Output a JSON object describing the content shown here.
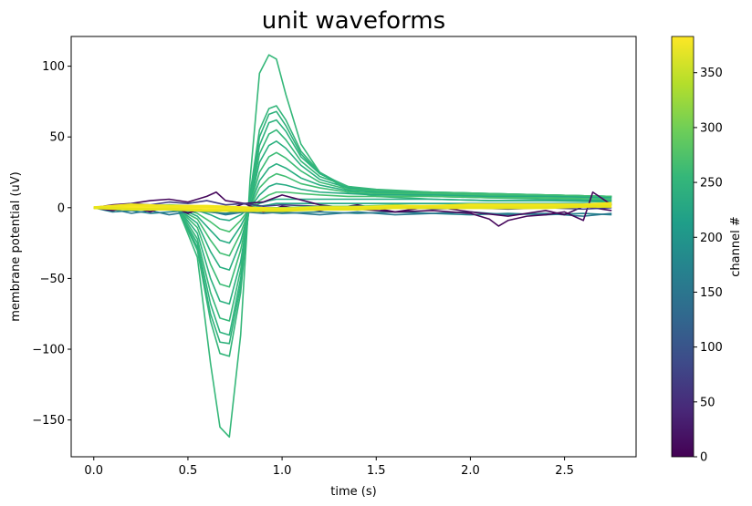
{
  "chart_data": {
    "type": "line",
    "title": "unit waveforms",
    "xlabel": "time (s)",
    "ylabel": "membrane potential (uV)",
    "xlim": [
      -0.12,
      2.88
    ],
    "ylim": [
      -176,
      121
    ],
    "xticks": [
      0.0,
      0.5,
      1.0,
      1.5,
      2.0,
      2.5
    ],
    "xtick_labels": [
      "0.0",
      "0.5",
      "1.0",
      "1.5",
      "2.0",
      "2.5"
    ],
    "yticks": [
      100,
      50,
      0,
      -50,
      -100,
      -150
    ],
    "ytick_labels": [
      "100",
      "50",
      "0",
      "−50",
      "−100",
      "−150"
    ],
    "grid": false,
    "colorbar": {
      "label": "channel #",
      "range": [
        0,
        383
      ],
      "ticks": [
        0,
        50,
        100,
        150,
        200,
        250,
        300,
        350
      ],
      "tick_labels": [
        "0",
        "50",
        "100",
        "150",
        "200",
        "250",
        "300",
        "350"
      ],
      "colormap": "viridis",
      "colormap_stops": [
        "#440154",
        "#482878",
        "#3e4a89",
        "#31688e",
        "#26828e",
        "#1f9e89",
        "#35b779",
        "#6ece58",
        "#b5de2b",
        "#fde725"
      ]
    },
    "series": [
      {
        "channel": 263,
        "color": "#35b779",
        "x": [
          0.0,
          0.3,
          0.45,
          0.55,
          0.62,
          0.67,
          0.72,
          0.78,
          0.83,
          0.88,
          0.93,
          0.97,
          1.02,
          1.1,
          1.2,
          1.35,
          1.5,
          1.8,
          2.1,
          2.4,
          2.75
        ],
        "y": [
          0,
          0,
          -2,
          -35,
          -110,
          -155,
          -162,
          -90,
          20,
          95,
          108,
          105,
          80,
          45,
          25,
          12,
          8,
          6,
          5,
          5,
          4
        ]
      },
      {
        "channel": 258,
        "color": "#33b57a",
        "x": [
          0.0,
          0.3,
          0.45,
          0.55,
          0.62,
          0.67,
          0.72,
          0.78,
          0.83,
          0.88,
          0.93,
          0.97,
          1.02,
          1.1,
          1.2,
          1.35,
          1.5,
          1.8,
          2.1,
          2.4,
          2.75
        ],
        "y": [
          0,
          0,
          -2,
          -30,
          -80,
          -103,
          -105,
          -60,
          10,
          55,
          70,
          72,
          62,
          40,
          25,
          14,
          10,
          8,
          7,
          6,
          5
        ]
      },
      {
        "channel": 255,
        "color": "#30b27c",
        "x": [
          0.0,
          0.3,
          0.45,
          0.55,
          0.62,
          0.67,
          0.72,
          0.78,
          0.83,
          0.88,
          0.93,
          0.97,
          1.02,
          1.1,
          1.2,
          1.35,
          1.5,
          1.8,
          2.1,
          2.4,
          2.75
        ],
        "y": [
          0,
          0,
          -2,
          -28,
          -75,
          -95,
          -96,
          -55,
          8,
          50,
          66,
          68,
          58,
          38,
          24,
          14,
          11,
          9,
          8,
          7,
          6
        ]
      },
      {
        "channel": 252,
        "color": "#2db27d",
        "x": [
          0.0,
          0.3,
          0.45,
          0.55,
          0.62,
          0.67,
          0.72,
          0.78,
          0.83,
          0.88,
          0.93,
          0.97,
          1.02,
          1.1,
          1.2,
          1.35,
          1.5,
          1.8,
          2.1,
          2.4,
          2.75
        ],
        "y": [
          0,
          0,
          -2,
          -25,
          -68,
          -88,
          -90,
          -50,
          5,
          44,
          60,
          62,
          54,
          36,
          24,
          15,
          12,
          10,
          9,
          8,
          7
        ]
      },
      {
        "channel": 260,
        "color": "#35b779",
        "x": [
          0.0,
          0.3,
          0.45,
          0.55,
          0.62,
          0.67,
          0.72,
          0.78,
          0.83,
          0.88,
          0.93,
          0.97,
          1.02,
          1.1,
          1.2,
          1.35,
          1.5,
          1.8,
          2.1,
          2.4,
          2.75
        ],
        "y": [
          0,
          0,
          -1,
          -22,
          -60,
          -78,
          -80,
          -44,
          4,
          38,
          52,
          55,
          48,
          33,
          22,
          15,
          13,
          11,
          10,
          9,
          8
        ]
      },
      {
        "channel": 249,
        "color": "#2ab07f",
        "x": [
          0.0,
          0.3,
          0.45,
          0.55,
          0.62,
          0.67,
          0.72,
          0.78,
          0.83,
          0.88,
          0.93,
          0.97,
          1.02,
          1.1,
          1.2,
          1.35,
          1.5,
          1.8,
          2.1,
          2.4,
          2.75
        ],
        "y": [
          0,
          0,
          -1,
          -18,
          -50,
          -66,
          -68,
          -38,
          3,
          32,
          44,
          47,
          42,
          30,
          20,
          14,
          12,
          11,
          10,
          9,
          8
        ]
      },
      {
        "channel": 265,
        "color": "#3bbb75",
        "x": [
          0.0,
          0.3,
          0.45,
          0.55,
          0.62,
          0.67,
          0.72,
          0.78,
          0.83,
          0.88,
          0.93,
          0.97,
          1.02,
          1.1,
          1.2,
          1.35,
          1.5,
          1.8,
          2.1,
          2.4,
          2.75
        ],
        "y": [
          0,
          0,
          -1,
          -14,
          -40,
          -54,
          -56,
          -30,
          2,
          25,
          36,
          39,
          35,
          26,
          18,
          13,
          12,
          11,
          10,
          9,
          8
        ]
      },
      {
        "channel": 246,
        "color": "#28ae80",
        "x": [
          0.0,
          0.3,
          0.45,
          0.55,
          0.62,
          0.67,
          0.72,
          0.78,
          0.83,
          0.88,
          0.93,
          0.97,
          1.02,
          1.1,
          1.2,
          1.35,
          1.5,
          1.8,
          2.1,
          2.4,
          2.75
        ],
        "y": [
          0,
          0,
          -1,
          -11,
          -31,
          -42,
          -44,
          -24,
          1,
          19,
          28,
          31,
          28,
          21,
          16,
          12,
          11,
          10,
          9,
          9,
          8
        ]
      },
      {
        "channel": 268,
        "color": "#40bd72",
        "x": [
          0.0,
          0.3,
          0.45,
          0.55,
          0.62,
          0.67,
          0.72,
          0.78,
          0.83,
          0.88,
          0.93,
          0.97,
          1.02,
          1.1,
          1.2,
          1.35,
          1.5,
          1.8,
          2.1,
          2.4,
          2.75
        ],
        "y": [
          0,
          0,
          -1,
          -8,
          -23,
          -32,
          -34,
          -18,
          0,
          14,
          21,
          24,
          22,
          17,
          14,
          11,
          10,
          10,
          9,
          9,
          8
        ]
      },
      {
        "channel": 243,
        "color": "#25ab82",
        "x": [
          0.0,
          0.3,
          0.45,
          0.55,
          0.62,
          0.67,
          0.72,
          0.78,
          0.83,
          0.88,
          0.93,
          0.97,
          1.02,
          1.1,
          1.2,
          1.35,
          1.5,
          1.8,
          2.1,
          2.4,
          2.75
        ],
        "y": [
          0,
          0,
          0,
          -6,
          -16,
          -23,
          -25,
          -13,
          0,
          9,
          15,
          17,
          16,
          13,
          11,
          10,
          9,
          9,
          8,
          8,
          7
        ]
      },
      {
        "channel": 271,
        "color": "#46c06f",
        "x": [
          0.0,
          0.3,
          0.45,
          0.55,
          0.62,
          0.67,
          0.72,
          0.78,
          0.83,
          0.88,
          0.93,
          0.97,
          1.02,
          1.1,
          1.2,
          1.35,
          1.5,
          1.8,
          2.1,
          2.4,
          2.75
        ],
        "y": [
          0,
          0,
          0,
          -4,
          -10,
          -15,
          -17,
          -9,
          0,
          5,
          9,
          11,
          11,
          10,
          9,
          8,
          8,
          8,
          7,
          7,
          6
        ]
      },
      {
        "channel": 240,
        "color": "#23a983",
        "x": [
          0.0,
          0.3,
          0.45,
          0.55,
          0.62,
          0.67,
          0.72,
          0.78,
          0.83,
          0.88,
          0.93,
          0.97,
          1.02,
          1.1,
          1.2,
          1.35,
          1.5,
          1.8,
          2.1,
          2.4,
          2.75
        ],
        "y": [
          0,
          0,
          0,
          -2,
          -5,
          -8,
          -9,
          -5,
          0,
          3,
          5,
          6,
          6,
          6,
          6,
          6,
          6,
          6,
          5,
          5,
          5
        ]
      },
      {
        "channel": 237,
        "color": "#22a785",
        "x": [
          0.0,
          0.3,
          0.45,
          0.55,
          0.62,
          0.67,
          0.72,
          0.78,
          0.83,
          0.88,
          0.93,
          0.97,
          1.02,
          1.1,
          1.2,
          1.35,
          1.5,
          1.8,
          2.1,
          2.4,
          2.75
        ],
        "y": [
          0,
          0,
          0,
          -1,
          -3,
          -4,
          -4,
          -2,
          0,
          1,
          2,
          3,
          3,
          3,
          3,
          3,
          3,
          3,
          3,
          3,
          3
        ]
      },
      {
        "channel": 175,
        "color": "#25838e",
        "x": [
          0.0,
          0.1,
          0.2,
          0.3,
          0.4,
          0.5,
          0.6,
          0.7,
          0.8,
          0.9,
          1.0,
          1.2,
          1.4,
          1.6,
          1.8,
          2.0,
          2.2,
          2.4,
          2.6,
          2.75
        ],
        "y": [
          0,
          -3,
          -2,
          -4,
          -3,
          -2,
          -3,
          -4,
          -2,
          -3,
          -4,
          -3,
          -4,
          -3,
          -4,
          -5,
          -4,
          -5,
          -4,
          -5
        ]
      },
      {
        "channel": 160,
        "color": "#29788e",
        "x": [
          0.0,
          0.1,
          0.2,
          0.3,
          0.4,
          0.5,
          0.6,
          0.7,
          0.8,
          0.9,
          1.0,
          1.2,
          1.4,
          1.6,
          1.8,
          2.0,
          2.2,
          2.4,
          2.6,
          2.75
        ],
        "y": [
          0,
          -1,
          -4,
          -2,
          -5,
          -3,
          -2,
          -5,
          -3,
          -4,
          -3,
          -5,
          -3,
          -5,
          -4,
          -3,
          -5,
          -4,
          -6,
          -4
        ]
      },
      {
        "channel": 20,
        "color": "#46085c",
        "x": [
          0.0,
          0.1,
          0.2,
          0.3,
          0.4,
          0.5,
          0.6,
          0.65,
          0.7,
          0.8,
          0.9,
          1.0,
          1.2,
          1.4,
          1.6,
          1.8,
          2.0,
          2.1,
          2.15,
          2.2,
          2.3,
          2.4,
          2.5,
          2.6,
          2.65,
          2.75
        ],
        "y": [
          0,
          2,
          3,
          5,
          6,
          4,
          8,
          11,
          5,
          3,
          4,
          9,
          2,
          -1,
          -3,
          -2,
          -4,
          -8,
          -13,
          -9,
          -6,
          -5,
          -3,
          -9,
          11,
          2
        ]
      },
      {
        "channel": 5,
        "color": "#450559",
        "x": [
          0.0,
          0.1,
          0.2,
          0.3,
          0.4,
          0.5,
          0.6,
          0.7,
          0.8,
          0.9,
          1.0,
          1.2,
          1.4,
          1.6,
          1.8,
          2.0,
          2.2,
          2.4,
          2.5,
          2.6,
          2.75
        ],
        "y": [
          0,
          -2,
          1,
          -3,
          2,
          -4,
          1,
          -2,
          3,
          -3,
          1,
          -2,
          2,
          -3,
          1,
          -3,
          -6,
          -2,
          -5,
          1,
          -2
        ]
      },
      {
        "channel": 75,
        "color": "#433e85",
        "x": [
          0.0,
          0.1,
          0.2,
          0.3,
          0.4,
          0.5,
          0.6,
          0.7,
          0.8,
          0.9,
          1.0,
          1.2,
          1.4,
          1.6,
          1.8,
          2.0,
          2.2,
          2.4,
          2.6,
          2.75
        ],
        "y": [
          0,
          1,
          3,
          2,
          4,
          3,
          5,
          2,
          3,
          1,
          2,
          1,
          0,
          1,
          -1,
          0,
          -1,
          0,
          -1,
          0
        ]
      },
      {
        "channel": 300,
        "color": "#7ad151",
        "x": [
          0.0,
          0.2,
          0.4,
          0.6,
          0.8,
          1.0,
          1.2,
          1.4,
          1.6,
          1.8,
          2.0,
          2.2,
          2.4,
          2.6,
          2.75
        ],
        "y": [
          0,
          1,
          2,
          1,
          0,
          0,
          1,
          1,
          2,
          1,
          1,
          2,
          1,
          2,
          2
        ]
      },
      {
        "channel": 383,
        "color": "#fde725",
        "x": [
          0.0,
          0.2,
          0.4,
          0.6,
          0.8,
          1.0,
          1.2,
          1.4,
          1.6,
          1.8,
          2.0,
          2.2,
          2.4,
          2.6,
          2.75
        ],
        "y": [
          0,
          1,
          0,
          0,
          -1,
          -1,
          -1,
          0,
          0,
          1,
          1,
          1,
          1,
          1,
          2
        ]
      },
      {
        "channel": 375,
        "color": "#f1e51d",
        "x": [
          0.0,
          0.2,
          0.4,
          0.6,
          0.8,
          1.0,
          1.2,
          1.4,
          1.6,
          1.8,
          2.0,
          2.2,
          2.4,
          2.6,
          2.75
        ],
        "y": [
          0,
          2,
          1,
          1,
          0,
          -1,
          0,
          0,
          1,
          1,
          2,
          2,
          2,
          2,
          3
        ]
      },
      {
        "channel": 370,
        "color": "#e7e419",
        "x": [
          0.0,
          0.2,
          0.4,
          0.6,
          0.8,
          1.0,
          1.2,
          1.4,
          1.6,
          1.8,
          2.0,
          2.2,
          2.4,
          2.6,
          2.75
        ],
        "y": [
          0,
          -1,
          -1,
          -2,
          -2,
          -2,
          -1,
          -1,
          0,
          0,
          0,
          0,
          0,
          1,
          1
        ]
      }
    ]
  }
}
